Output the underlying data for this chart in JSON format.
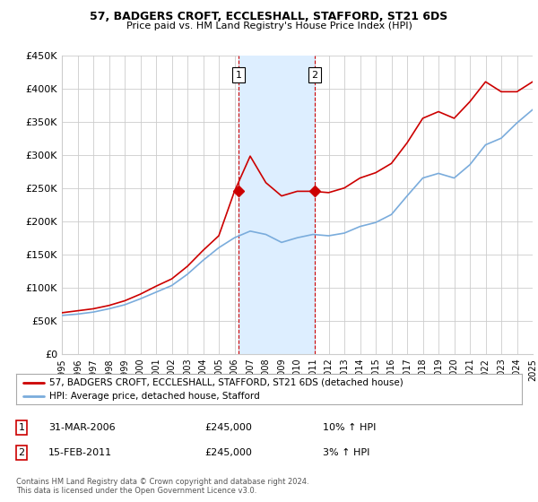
{
  "title": "57, BADGERS CROFT, ECCLESHALL, STAFFORD, ST21 6DS",
  "subtitle": "Price paid vs. HM Land Registry's House Price Index (HPI)",
  "legend_line1": "57, BADGERS CROFT, ECCLESHALL, STAFFORD, ST21 6DS (detached house)",
  "legend_line2": "HPI: Average price, detached house, Stafford",
  "footer1": "Contains HM Land Registry data © Crown copyright and database right 2024.",
  "footer2": "This data is licensed under the Open Government Licence v3.0.",
  "transaction1_date": "31-MAR-2006",
  "transaction1_price": "£245,000",
  "transaction1_hpi": "10% ↑ HPI",
  "transaction2_date": "15-FEB-2011",
  "transaction2_price": "£245,000",
  "transaction2_hpi": "3% ↑ HPI",
  "red_color": "#cc0000",
  "blue_color": "#7aacdc",
  "shaded_color": "#ddeeff",
  "grid_color": "#cccccc",
  "background_color": "#ffffff",
  "ylim_min": 0,
  "ylim_max": 450000,
  "yticks": [
    0,
    50000,
    100000,
    150000,
    200000,
    250000,
    300000,
    350000,
    400000,
    450000
  ],
  "ytick_labels": [
    "£0",
    "£50K",
    "£100K",
    "£150K",
    "£200K",
    "£250K",
    "£300K",
    "£350K",
    "£400K",
    "£450K"
  ],
  "xtick_years": [
    1995,
    1996,
    1997,
    1998,
    1999,
    2000,
    2001,
    2002,
    2003,
    2004,
    2005,
    2006,
    2007,
    2008,
    2009,
    2010,
    2011,
    2012,
    2013,
    2014,
    2015,
    2016,
    2017,
    2018,
    2019,
    2020,
    2021,
    2022,
    2023,
    2024,
    2025
  ],
  "transaction1_x": 2006.25,
  "transaction2_x": 2011.12,
  "hpi_values": [
    58000,
    60000,
    63000,
    68000,
    74000,
    83000,
    93000,
    103000,
    120000,
    141000,
    160000,
    175000,
    185000,
    180000,
    168000,
    175000,
    180000,
    178000,
    182000,
    192000,
    198000,
    210000,
    238000,
    265000,
    272000,
    265000,
    285000,
    315000,
    325000,
    348000,
    368000
  ],
  "sale_values": [
    62000,
    65000,
    68000,
    73000,
    80000,
    90000,
    102000,
    113000,
    132000,
    156000,
    178000,
    245000,
    298000,
    258000,
    238000,
    245000,
    245000,
    243000,
    250000,
    265000,
    273000,
    287000,
    318000,
    355000,
    365000,
    355000,
    380000,
    410000,
    395000,
    395000,
    410000
  ]
}
